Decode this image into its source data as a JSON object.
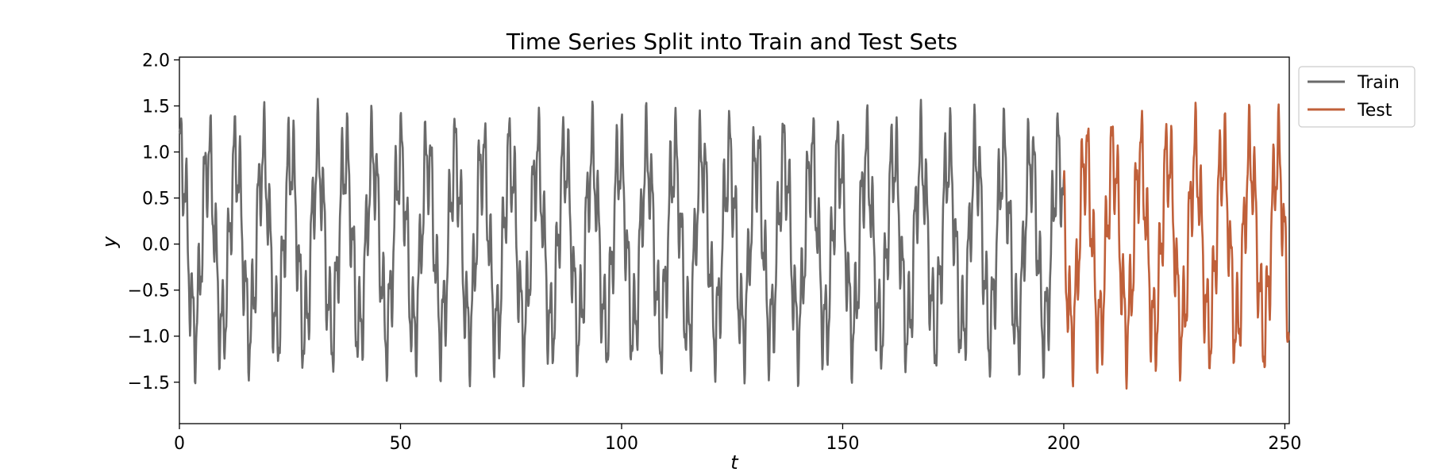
{
  "chart_data": {
    "type": "line",
    "title": "Time Series Split into Train and Test Sets",
    "xlabel": "t",
    "ylabel": "y",
    "xlim": [
      0,
      251
    ],
    "ylim": [
      -1.95,
      2.03
    ],
    "xticks": [
      0,
      50,
      100,
      150,
      200,
      250
    ],
    "yticks": [
      2.0,
      1.5,
      1.0,
      0.5,
      0.0,
      -0.5,
      -1.0,
      -1.5
    ],
    "ytick_labels": [
      "2.0",
      "1.5",
      "1.0",
      "0.5",
      "0.0",
      "−0.5",
      "−1.0",
      "−1.5"
    ],
    "xtick_labels": [
      "0",
      "50",
      "100",
      "150",
      "200",
      "250"
    ],
    "legend_position": "outside-top-right",
    "grid": false,
    "sampling": {
      "dt": 0.1
    },
    "series": [
      {
        "name": "Train",
        "color": "#6a6a6a",
        "t_range": [
          0,
          200
        ],
        "components": [
          {
            "amplitude": 0.95,
            "period": 6.2,
            "phase": 1.2
          },
          {
            "amplitude": 0.45,
            "period": 1.35,
            "phase": 0.4
          },
          {
            "amplitude": 0.18,
            "period": 0.55,
            "phase": 2.1
          }
        ]
      },
      {
        "name": "Test",
        "color": "#c0603a",
        "t_range": [
          200,
          251
        ],
        "components": [
          {
            "amplitude": 0.95,
            "period": 6.2,
            "phase": 1.2
          },
          {
            "amplitude": 0.45,
            "period": 1.35,
            "phase": 0.4
          },
          {
            "amplitude": 0.18,
            "period": 0.55,
            "phase": 2.1
          }
        ]
      }
    ]
  }
}
